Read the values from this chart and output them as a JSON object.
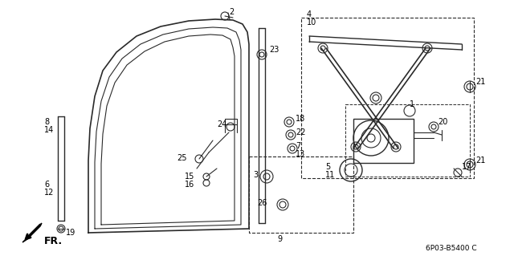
{
  "bg_color": "#ffffff",
  "line_color": "#2a2a2a",
  "watermark": "6P03-B5400 C",
  "lw_main": 1.2,
  "lw_thin": 0.8,
  "lw_med": 1.0,
  "figsize": [
    6.4,
    3.19
  ],
  "dpi": 100
}
